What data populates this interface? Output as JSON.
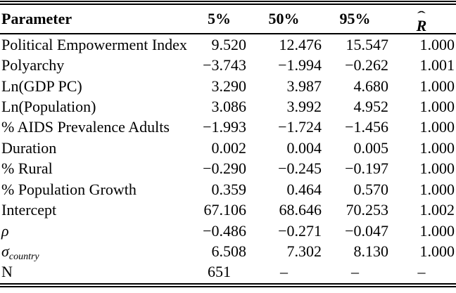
{
  "table": {
    "header": {
      "param": "Parameter",
      "p5": "5%",
      "p50": "50%",
      "p95": "95%",
      "rhat_hat": "ˆ",
      "rhat_letter": "R"
    },
    "rows": [
      {
        "param": "Political Empowerment Index",
        "p5": "9.520",
        "p50": "12.476",
        "p95": "15.547",
        "rhat": "1.000"
      },
      {
        "param": "Polyarchy",
        "p5": "−3.743",
        "p50": "−1.994",
        "p95": "−0.262",
        "rhat": "1.001"
      },
      {
        "param": "Ln(GDP PC)",
        "p5": "3.290",
        "p50": "3.987",
        "p95": "4.680",
        "rhat": "1.000"
      },
      {
        "param": "Ln(Population)",
        "p5": "3.086",
        "p50": "3.992",
        "p95": "4.952",
        "rhat": "1.000"
      },
      {
        "param": "% AIDS Prevalence Adults",
        "p5": "−1.993",
        "p50": "−1.724",
        "p95": "−1.456",
        "rhat": "1.000"
      },
      {
        "param": "Duration",
        "p5": "0.002",
        "p50": "0.004",
        "p95": "0.005",
        "rhat": "1.000"
      },
      {
        "param": "% Rural",
        "p5": "−0.290",
        "p50": "−0.245",
        "p95": "−0.197",
        "rhat": "1.000"
      },
      {
        "param": "% Population Growth",
        "p5": "0.359",
        "p50": "0.464",
        "p95": "0.570",
        "rhat": "1.000"
      },
      {
        "param": "Intercept",
        "p5": "67.106",
        "p50": "68.646",
        "p95": "70.253",
        "rhat": "1.002"
      },
      {
        "param": "ρ",
        "p5": "−0.486",
        "p50": "−0.271",
        "p95": "−0.047",
        "rhat": "1.000"
      },
      {
        "param_sigma": "σ",
        "param_sub": "country",
        "p5": "6.508",
        "p50": "7.302",
        "p95": "8.130",
        "rhat": "1.000"
      },
      {
        "param": "N",
        "p5": "651",
        "p50": "–",
        "p95": "–",
        "rhat": "–"
      }
    ],
    "colors": {
      "text": "#000000",
      "background": "#ffffff",
      "rule": "#000000"
    }
  }
}
